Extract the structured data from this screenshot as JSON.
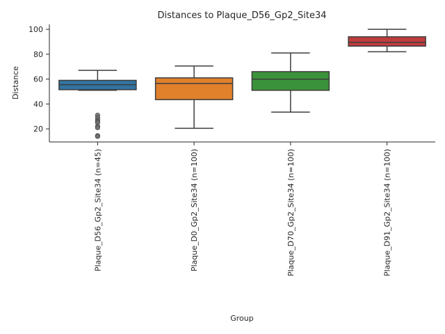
{
  "chart_data": {
    "type": "box",
    "title": "Distances to Plaque_D56_Gp2_Site34",
    "xlabel": "Group",
    "ylabel": "Distance",
    "ylim": [
      9.5,
      104
    ],
    "yticks": [
      20,
      40,
      60,
      80,
      100
    ],
    "grid": false,
    "legend": "none",
    "categories": [
      "Plaque_D56_Gp2_Site34 (n=45)",
      "Plaque_D0_Gp2_Site34 (n=100)",
      "Plaque_D70_Gp2_Site34 (n=100)",
      "Plaque_D91_Gp2_Site34 (n=100)"
    ],
    "boxes": [
      {
        "whisker_low": 51,
        "q1": 51.5,
        "median": 55.5,
        "q3": 59,
        "whisker_high": 67,
        "outliers": [
          31,
          29,
          27,
          26,
          25,
          22,
          21,
          14.5,
          14
        ],
        "color": "#3274a1"
      },
      {
        "whisker_low": 20.5,
        "q1": 43.5,
        "median": 56.5,
        "q3": 61,
        "whisker_high": 70.5,
        "outliers": [],
        "color": "#e1812c"
      },
      {
        "whisker_low": 33.5,
        "q1": 51,
        "median": 60,
        "q3": 66,
        "whisker_high": 81,
        "outliers": [],
        "color": "#3a923a"
      },
      {
        "whisker_low": 82,
        "q1": 86.5,
        "median": 89.5,
        "q3": 94,
        "whisker_high": 100,
        "outliers": [],
        "color": "#c03d3e"
      }
    ]
  }
}
